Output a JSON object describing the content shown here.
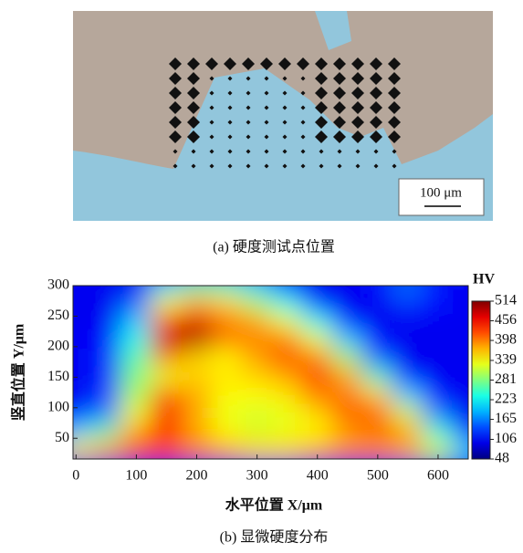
{
  "figure_a": {
    "scale_bar": "100 μm",
    "caption": "(a)  硬度测试点位置"
  },
  "chart_data": {
    "type": "heatmap",
    "caption": "(b)  显微硬度分布",
    "x_label": "水平位置 X/μm",
    "y_label": "竖直位置 Y/μm",
    "colorbar_label": "HV",
    "x": [
      0,
      50,
      100,
      150,
      200,
      250,
      300,
      350,
      400,
      450,
      500,
      550,
      600,
      650
    ],
    "y": [
      300,
      270,
      240,
      210,
      180,
      150,
      120,
      90,
      60,
      30
    ],
    "z": [
      [
        100,
        100,
        100,
        200,
        260,
        250,
        200,
        120,
        100,
        100,
        110,
        160,
        120,
        100
      ],
      [
        100,
        100,
        150,
        330,
        380,
        360,
        300,
        230,
        120,
        100,
        100,
        130,
        110,
        100
      ],
      [
        100,
        100,
        200,
        420,
        470,
        400,
        380,
        330,
        230,
        120,
        100,
        100,
        100,
        100
      ],
      [
        100,
        110,
        230,
        480,
        500,
        400,
        400,
        400,
        330,
        200,
        110,
        100,
        100,
        100
      ],
      [
        100,
        120,
        260,
        400,
        360,
        340,
        380,
        420,
        400,
        300,
        150,
        100,
        100,
        100
      ],
      [
        100,
        120,
        280,
        330,
        360,
        350,
        360,
        380,
        430,
        380,
        250,
        120,
        100,
        100
      ],
      [
        100,
        130,
        300,
        420,
        380,
        340,
        340,
        350,
        400,
        400,
        360,
        200,
        110,
        100
      ],
      [
        110,
        160,
        330,
        460,
        380,
        330,
        320,
        330,
        360,
        420,
        420,
        320,
        160,
        100
      ],
      [
        200,
        260,
        380,
        440,
        380,
        340,
        320,
        330,
        340,
        380,
        400,
        380,
        240,
        130
      ],
      [
        350,
        380,
        420,
        430,
        400,
        380,
        360,
        360,
        380,
        400,
        400,
        380,
        320,
        200
      ]
    ],
    "xlim": [
      -5,
      650
    ],
    "ylim": [
      16,
      300
    ],
    "xticks": [
      0,
      100,
      200,
      300,
      400,
      500,
      600
    ],
    "yticks": [
      50,
      100,
      150,
      200,
      250,
      300
    ],
    "clim": [
      48,
      514
    ],
    "cticks": [
      514,
      456,
      398,
      339,
      281,
      223,
      165,
      106,
      48
    ],
    "colormap": "jet"
  }
}
